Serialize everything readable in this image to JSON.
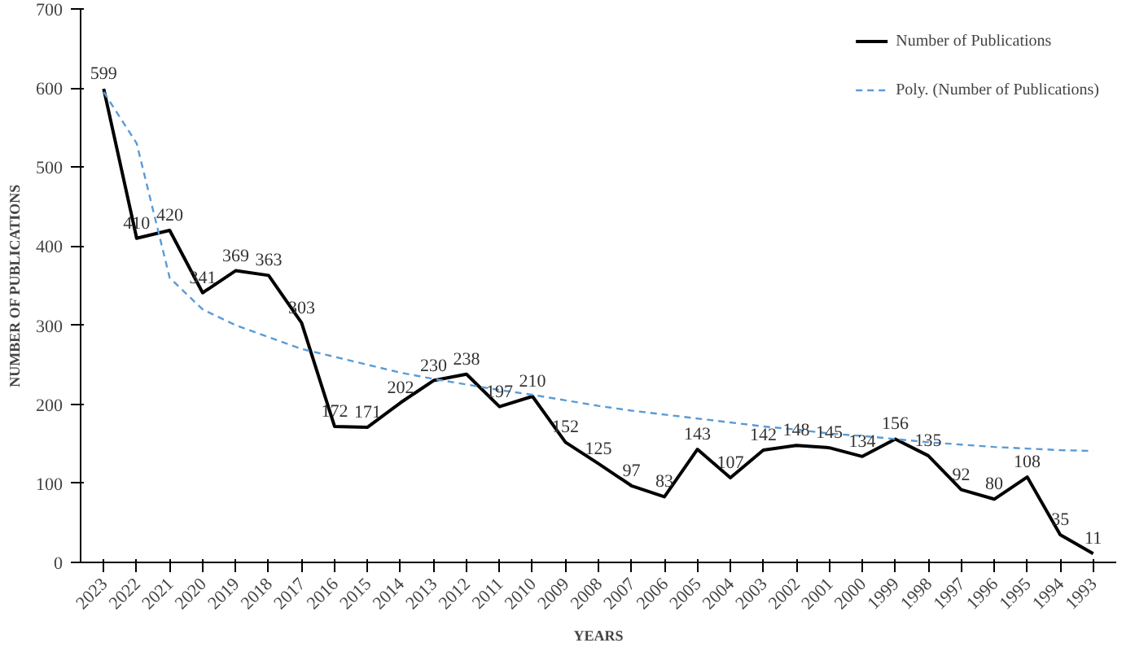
{
  "chart_data": {
    "type": "line",
    "xlabel": "YEARS",
    "ylabel": "NUMBER OF PUBLICATIONS",
    "categories": [
      "2023",
      "2022",
      "2021",
      "2020",
      "2019",
      "2018",
      "2017",
      "2016",
      "2015",
      "2014",
      "2013",
      "2012",
      "2011",
      "2010",
      "2009",
      "2008",
      "2007",
      "2006",
      "2005",
      "2004",
      "2003",
      "2002",
      "2001",
      "2000",
      "1999",
      "1998",
      "1997",
      "1996",
      "1995",
      "1994",
      "1993"
    ],
    "series": [
      {
        "name": "Number of Publications",
        "color": "#000000",
        "line_style": "solid",
        "data_labels": true,
        "values": [
          599,
          410,
          420,
          341,
          369,
          363,
          303,
          172,
          171,
          202,
          230,
          238,
          197,
          210,
          152,
          125,
          97,
          83,
          143,
          107,
          142,
          148,
          145,
          134,
          156,
          135,
          92,
          80,
          108,
          35,
          11
        ]
      },
      {
        "name": "Poly. (Number of Publications)",
        "color": "#5b9bd5",
        "line_style": "dashed",
        "values": [
          595,
          530,
          360,
          320,
          300,
          285,
          270,
          260,
          250,
          240,
          232,
          225,
          218,
          212,
          205,
          198,
          192,
          187,
          182,
          177,
          172,
          168,
          163,
          160,
          156,
          152,
          149,
          146,
          144,
          142,
          141
        ]
      }
    ],
    "ylim": [
      0,
      700
    ],
    "yticks": [
      0,
      100,
      200,
      300,
      400,
      500,
      600,
      700
    ],
    "grid": false,
    "legend": "top right",
    "marker": "none"
  }
}
